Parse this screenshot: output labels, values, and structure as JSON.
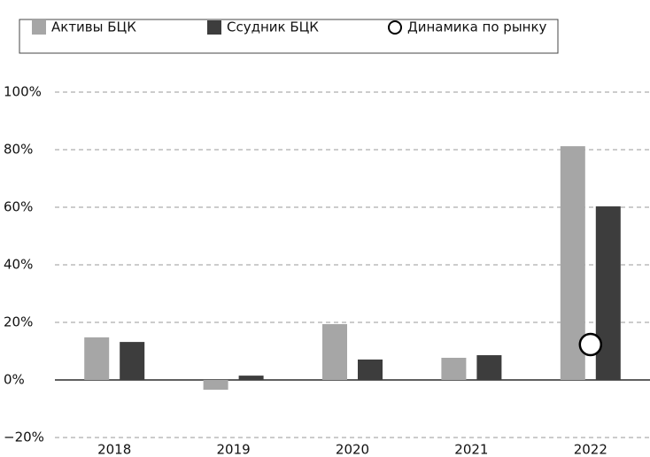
{
  "chart_data": {
    "type": "bar",
    "categories": [
      "2018",
      "2019",
      "2020",
      "2021",
      "2022"
    ],
    "series": [
      {
        "name": "Активы БЦК",
        "color": "#a6a6a6",
        "values": [
          14.8,
          -3.4,
          19.4,
          7.7,
          81.2
        ]
      },
      {
        "name": "Ссудник БЦК",
        "color": "#3d3d3d",
        "values": [
          13.2,
          1.5,
          7.1,
          8.6,
          60.3
        ]
      },
      {
        "name": "Динамика по рынку",
        "color": "#ffffff",
        "type": "scatter",
        "values": [
          null,
          null,
          null,
          null,
          12.3
        ]
      }
    ],
    "ylim": [
      -20,
      100
    ],
    "yticks": [
      {
        "value": -20,
        "label": "−20%"
      },
      {
        "value": 0,
        "label": "0%"
      },
      {
        "value": 20,
        "label": "20%"
      },
      {
        "value": 40,
        "label": "40%"
      },
      {
        "value": 60,
        "label": "60%"
      },
      {
        "value": 80,
        "label": "80%"
      },
      {
        "value": 100,
        "label": "100%"
      }
    ],
    "grid": true
  }
}
